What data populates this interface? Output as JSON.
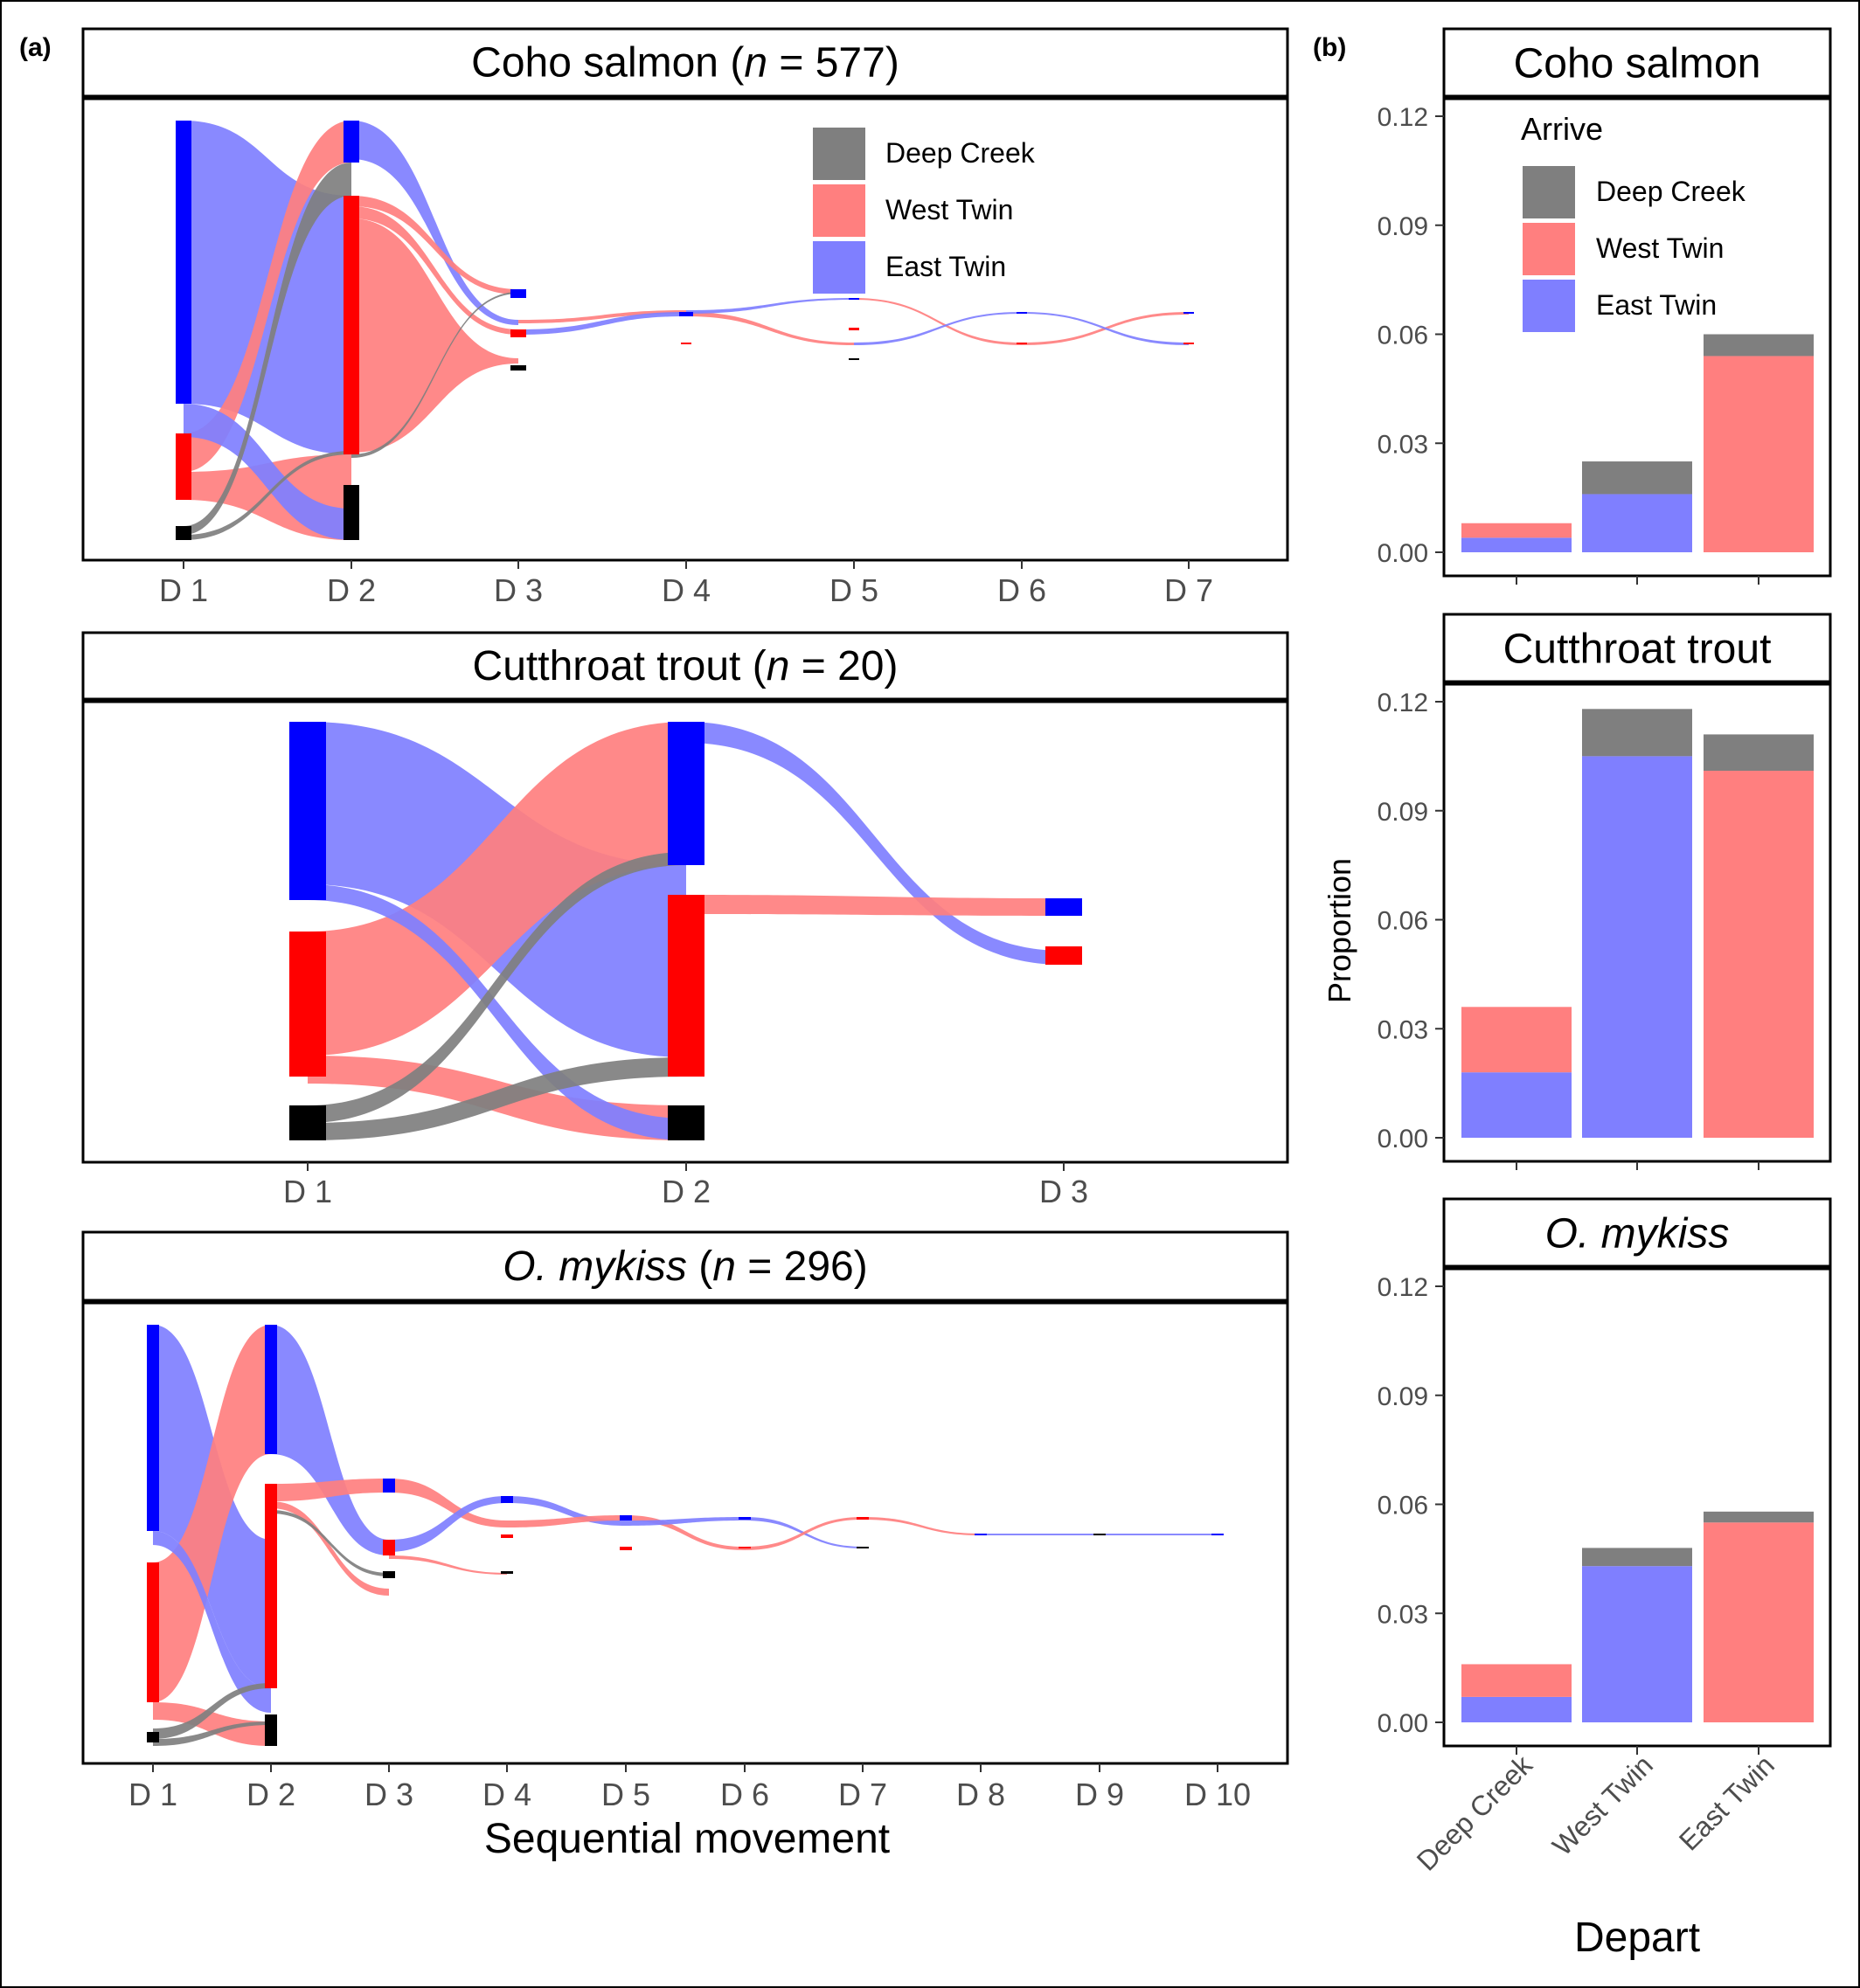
{
  "panel_labels": {
    "a": "(a)",
    "b": "(b)"
  },
  "colors": {
    "deep_creek": "#000000",
    "west_twin": "#ff0000",
    "east_twin": "#0000ff",
    "deep_creek_fill": "#7f7f7f",
    "west_twin_fill": "#ff7f7f",
    "east_twin_fill": "#7f7fff"
  },
  "sankey": {
    "xlabel": "Sequential movement",
    "legend": [
      "Deep Creek",
      "West Twin",
      "East Twin"
    ],
    "panels": [
      {
        "title_main": "Coho salmon",
        "title_n": "577",
        "italic_species": false,
        "steps": [
          "D 1",
          "D 2",
          "D 3",
          "D 4",
          "D 5",
          "D 6",
          "D 7"
        ]
      },
      {
        "title_main": "Cutthroat trout",
        "title_n": "20",
        "italic_species": false,
        "steps": [
          "D 1",
          "D 2",
          "D 3"
        ]
      },
      {
        "title_main": "O. mykiss",
        "title_n": "296",
        "italic_species": true,
        "steps": [
          "D 1",
          "D 2",
          "D 3",
          "D 4",
          "D 5",
          "D 6",
          "D 7",
          "D 8",
          "D 9",
          "D 10"
        ]
      }
    ]
  },
  "chart_data": {
    "type": "bar",
    "stacked": true,
    "xlabel": "Depart",
    "ylabel": "Proportion",
    "legend_title": "Arrive",
    "legend": [
      "Deep Creek",
      "West Twin",
      "East Twin"
    ],
    "categories": [
      "Deep Creek",
      "West Twin",
      "East Twin"
    ],
    "ylim": [
      0,
      0.12
    ],
    "yticks": [
      "0.00",
      "0.03",
      "0.06",
      "0.09",
      "0.12"
    ],
    "facets": [
      {
        "title": "Coho salmon",
        "italic": false,
        "series": [
          {
            "name": "East Twin",
            "values": [
              0.004,
              0.016,
              0
            ]
          },
          {
            "name": "West Twin",
            "values": [
              0.004,
              0,
              0.054
            ]
          },
          {
            "name": "Deep Creek",
            "values": [
              0,
              0.009,
              0.006
            ]
          }
        ]
      },
      {
        "title": "Cutthroat trout",
        "italic": false,
        "series": [
          {
            "name": "East Twin",
            "values": [
              0.018,
              0.105,
              0
            ]
          },
          {
            "name": "West Twin",
            "values": [
              0.018,
              0,
              0.101
            ]
          },
          {
            "name": "Deep Creek",
            "values": [
              0,
              0.013,
              0.01
            ]
          }
        ]
      },
      {
        "title": "O. mykiss",
        "italic": true,
        "series": [
          {
            "name": "East Twin",
            "values": [
              0.007,
              0.043,
              0
            ]
          },
          {
            "name": "West Twin",
            "values": [
              0.009,
              0,
              0.055
            ]
          },
          {
            "name": "Deep Creek",
            "values": [
              0,
              0.005,
              0.003
            ]
          }
        ]
      }
    ]
  }
}
